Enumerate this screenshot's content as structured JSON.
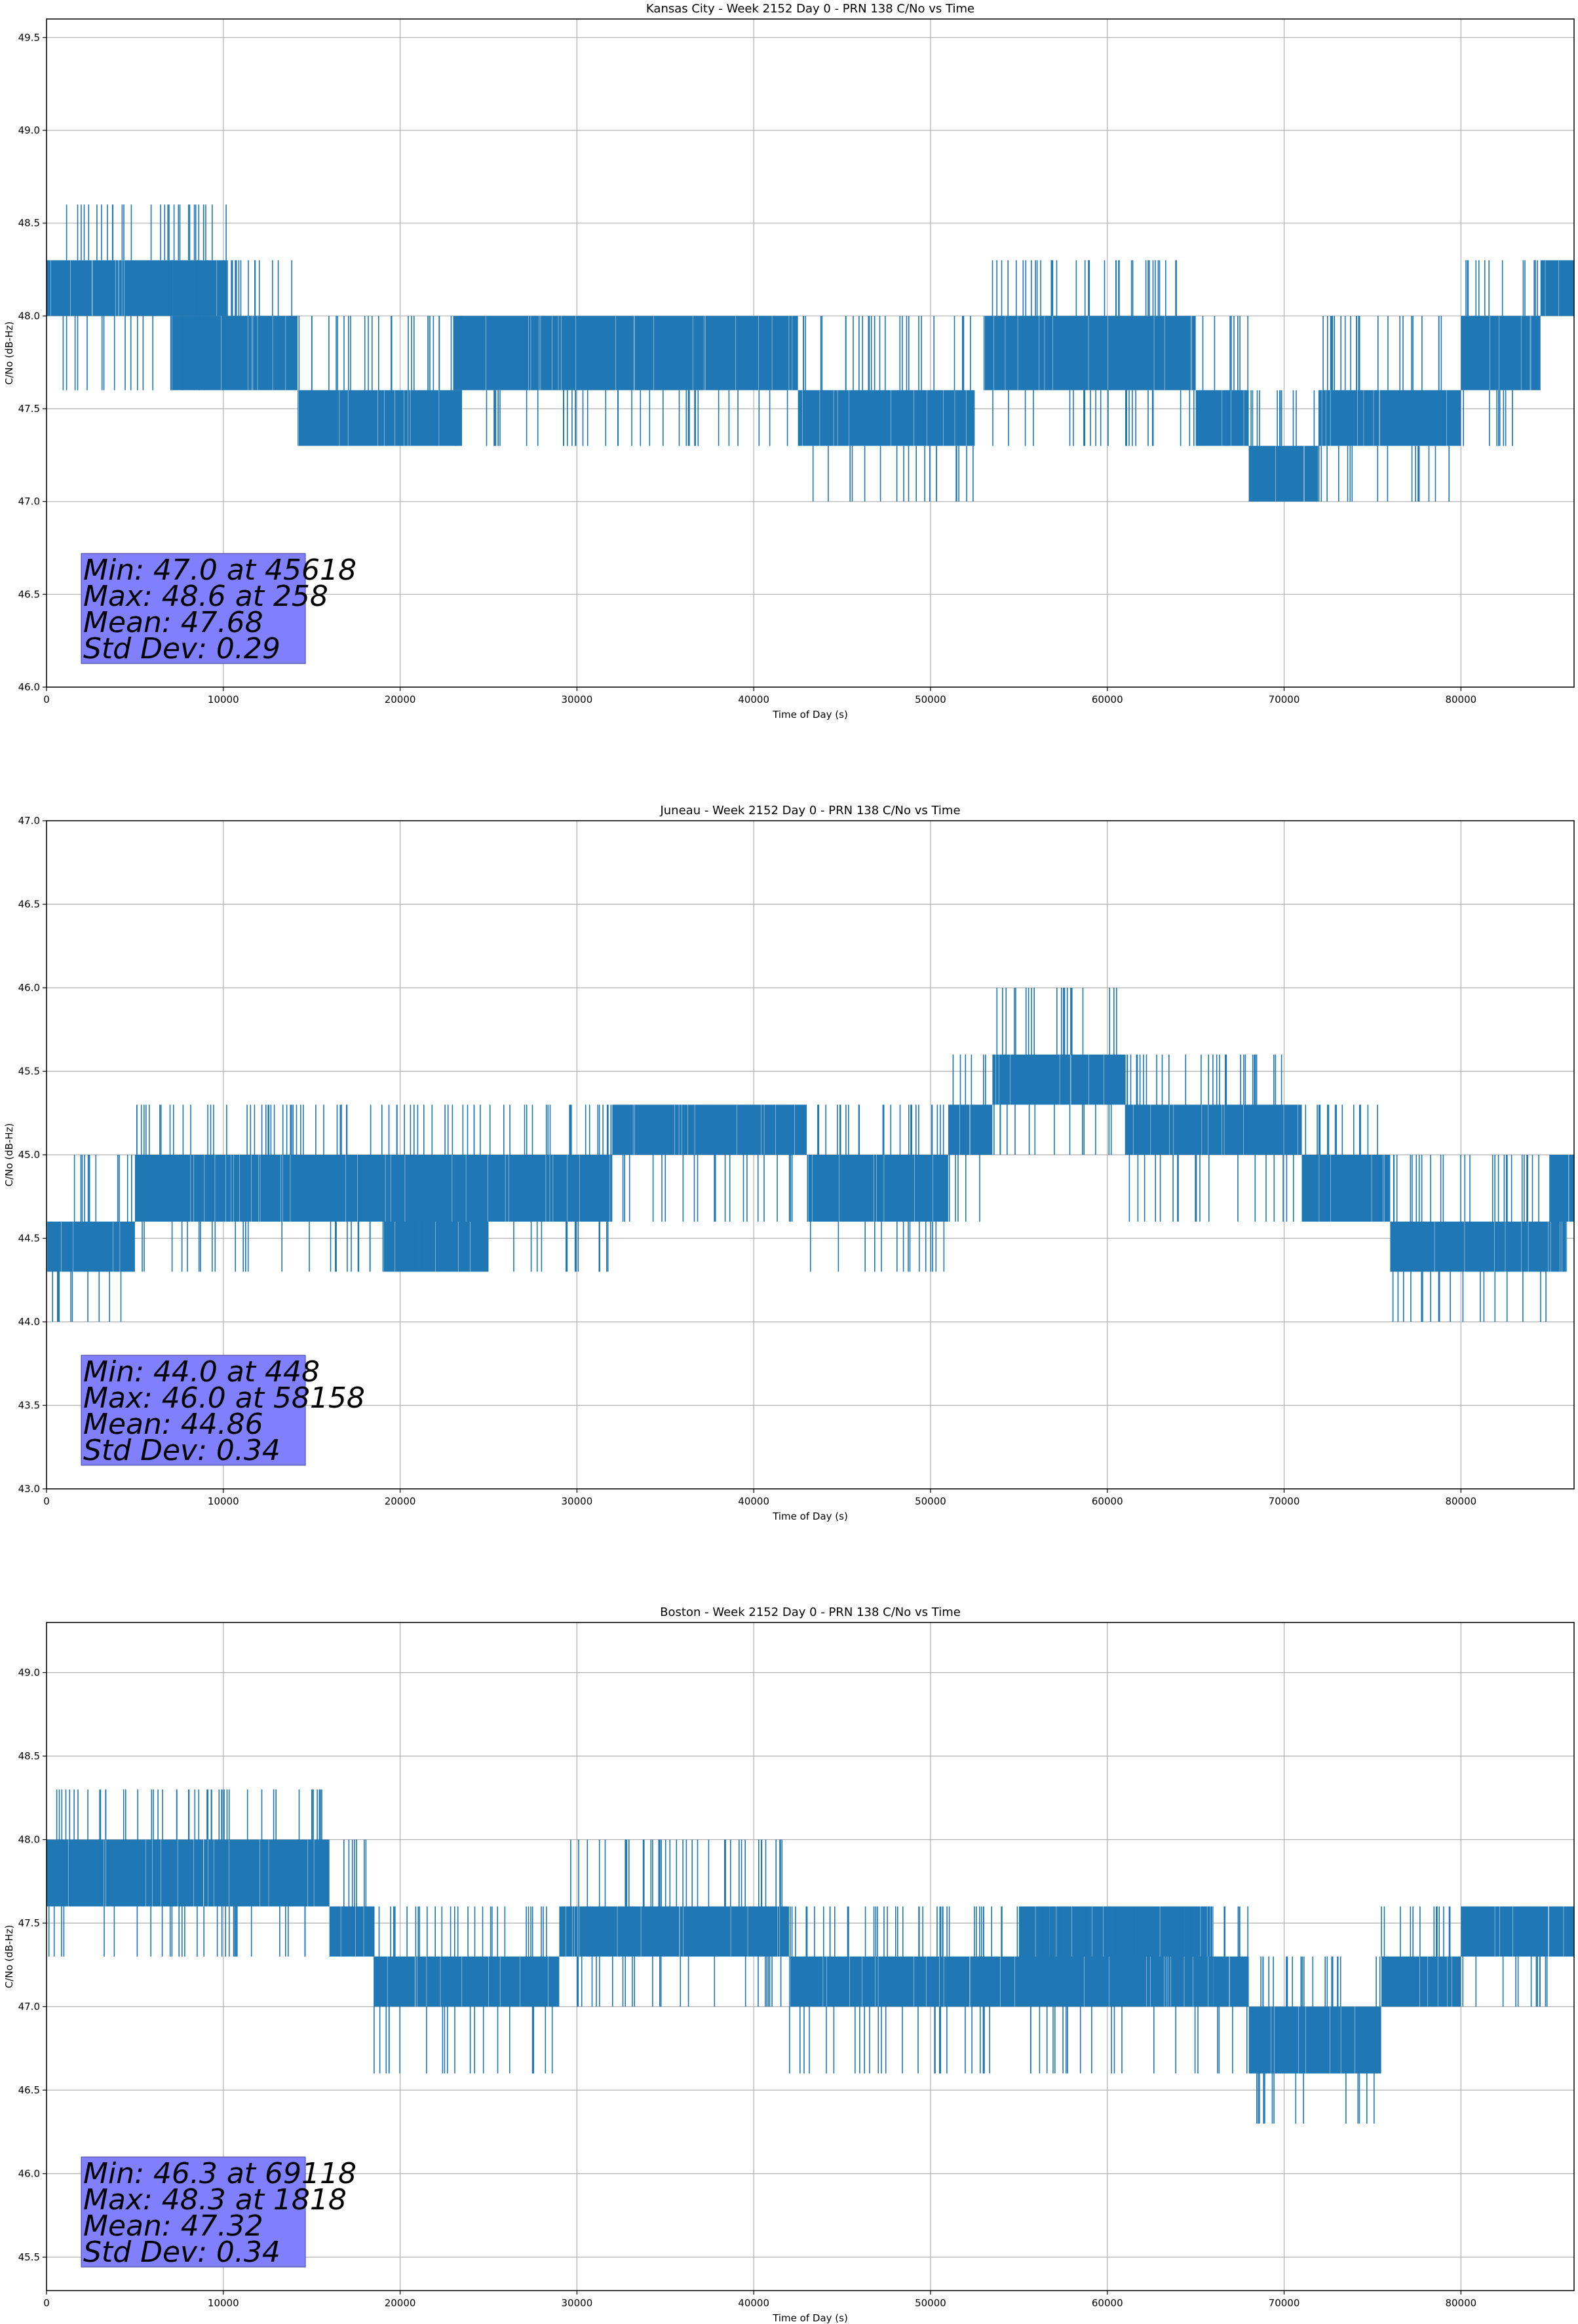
{
  "chart_data": [
    {
      "type": "line",
      "title": "Kansas City - Week 2152 Day 0 - PRN 138 C/No vs Time",
      "xlabel": "Time of Day (s)",
      "ylabel": "C/No (dB-Hz)",
      "xlim": [
        0,
        86400
      ],
      "ylim": [
        46.0,
        49.6
      ],
      "xticks": [
        0,
        10000,
        20000,
        30000,
        40000,
        50000,
        60000,
        70000,
        80000
      ],
      "yticks": [
        46.0,
        46.5,
        47.0,
        47.5,
        48.0,
        48.5,
        49.0,
        49.5
      ],
      "grid": true,
      "series_color": "#1f77b4",
      "series": [
        {
          "band_segments": [
            {
              "x": [
                0,
                10200
              ],
              "low": 48.0,
              "high": 48.3,
              "spikes_up": [
                48.6
              ],
              "spikes_down": [
                47.6
              ]
            },
            {
              "x": [
                7000,
                14200
              ],
              "low": 47.6,
              "high": 48.0,
              "spikes_up": [
                48.3
              ],
              "spikes_down": []
            },
            {
              "x": [
                14200,
                23500
              ],
              "low": 47.3,
              "high": 47.6,
              "spikes_up": [
                48.0
              ],
              "spikes_down": []
            },
            {
              "x": [
                23000,
                42500
              ],
              "low": 47.6,
              "high": 48.0,
              "spikes_up": [],
              "spikes_down": [
                47.3
              ]
            },
            {
              "x": [
                42500,
                52500
              ],
              "low": 47.3,
              "high": 47.6,
              "spikes_up": [
                48.0
              ],
              "spikes_down": [
                47.0
              ]
            },
            {
              "x": [
                53000,
                65000
              ],
              "low": 47.6,
              "high": 48.0,
              "spikes_up": [
                48.3
              ],
              "spikes_down": [
                47.3
              ]
            },
            {
              "x": [
                65000,
                68000
              ],
              "low": 47.3,
              "high": 47.6,
              "spikes_up": [
                48.0
              ],
              "spikes_down": []
            },
            {
              "x": [
                68000,
                72000
              ],
              "low": 47.0,
              "high": 47.3,
              "spikes_up": [
                47.6
              ],
              "spikes_down": []
            },
            {
              "x": [
                72000,
                80000
              ],
              "low": 47.3,
              "high": 47.6,
              "spikes_up": [
                48.0
              ],
              "spikes_down": [
                47.0
              ]
            },
            {
              "x": [
                80000,
                84500
              ],
              "low": 47.6,
              "high": 48.0,
              "spikes_up": [
                48.3
              ],
              "spikes_down": [
                47.3
              ]
            },
            {
              "x": [
                84500,
                86400
              ],
              "low": 48.0,
              "high": 48.3,
              "spikes_up": [],
              "spikes_down": []
            }
          ]
        }
      ],
      "stats": [
        "Min: 47.0 at 45618",
        "Max: 48.6 at 258",
        "Mean: 47.68",
        "Std Dev: 0.29"
      ],
      "stats_box_color": "#8080ff"
    },
    {
      "type": "line",
      "title": "Juneau - Week 2152 Day 0 - PRN 138 C/No vs Time",
      "xlabel": "Time of Day (s)",
      "ylabel": "C/No (dB-Hz)",
      "xlim": [
        0,
        86400
      ],
      "ylim": [
        43.0,
        47.0
      ],
      "xticks": [
        0,
        10000,
        20000,
        30000,
        40000,
        50000,
        60000,
        70000,
        80000
      ],
      "yticks": [
        43.0,
        43.5,
        44.0,
        44.5,
        45.0,
        45.5,
        46.0,
        46.5,
        47.0
      ],
      "grid": true,
      "series_color": "#1f77b4",
      "series": [
        {
          "band_segments": [
            {
              "x": [
                0,
                5000
              ],
              "low": 44.3,
              "high": 44.6,
              "spikes_up": [
                45.0
              ],
              "spikes_down": [
                44.0
              ]
            },
            {
              "x": [
                5000,
                25000
              ],
              "low": 44.6,
              "high": 45.0,
              "spikes_up": [
                45.3
              ],
              "spikes_down": [
                44.3
              ]
            },
            {
              "x": [
                19000,
                25000
              ],
              "low": 44.3,
              "high": 44.6,
              "spikes_up": [],
              "spikes_down": []
            },
            {
              "x": [
                25000,
                32000
              ],
              "low": 44.6,
              "high": 45.0,
              "spikes_up": [
                45.3
              ],
              "spikes_down": [
                44.3
              ]
            },
            {
              "x": [
                32000,
                43000
              ],
              "low": 45.0,
              "high": 45.3,
              "spikes_up": [],
              "spikes_down": [
                44.6
              ]
            },
            {
              "x": [
                43000,
                51000
              ],
              "low": 44.6,
              "high": 45.0,
              "spikes_up": [
                45.3
              ],
              "spikes_down": [
                44.3
              ]
            },
            {
              "x": [
                51000,
                53500
              ],
              "low": 45.0,
              "high": 45.3,
              "spikes_up": [
                45.6
              ],
              "spikes_down": [
                44.6
              ]
            },
            {
              "x": [
                53500,
                61000
              ],
              "low": 45.3,
              "high": 45.6,
              "spikes_up": [
                46.0
              ],
              "spikes_down": [
                45.0
              ]
            },
            {
              "x": [
                61000,
                71000
              ],
              "low": 45.0,
              "high": 45.3,
              "spikes_up": [
                45.6
              ],
              "spikes_down": [
                44.6
              ]
            },
            {
              "x": [
                71000,
                76000
              ],
              "low": 44.6,
              "high": 45.0,
              "spikes_up": [
                45.3
              ],
              "spikes_down": []
            },
            {
              "x": [
                76000,
                86000
              ],
              "low": 44.3,
              "high": 44.6,
              "spikes_up": [
                45.0
              ],
              "spikes_down": [
                44.0
              ]
            },
            {
              "x": [
                85000,
                86400
              ],
              "low": 44.6,
              "high": 45.0,
              "spikes_up": [],
              "spikes_down": []
            }
          ]
        }
      ],
      "stats": [
        "Min: 44.0 at 448",
        "Max: 46.0 at 58158",
        "Mean: 44.86",
        "Std Dev: 0.34"
      ],
      "stats_box_color": "#8080ff"
    },
    {
      "type": "line",
      "title": "Boston - Week 2152 Day 0 - PRN 138 C/No vs Time",
      "xlabel": "Time of Day (s)",
      "ylabel": "C/No (dB-Hz)",
      "xlim": [
        0,
        86400
      ],
      "ylim": [
        45.3,
        49.3
      ],
      "xticks": [
        0,
        10000,
        20000,
        30000,
        40000,
        50000,
        60000,
        70000,
        80000
      ],
      "yticks": [
        45.5,
        46.0,
        46.5,
        47.0,
        47.5,
        48.0,
        48.5,
        49.0
      ],
      "grid": true,
      "series_color": "#1f77b4",
      "series": [
        {
          "band_segments": [
            {
              "x": [
                0,
                16000
              ],
              "low": 47.6,
              "high": 48.0,
              "spikes_up": [
                48.3
              ],
              "spikes_down": [
                47.3
              ]
            },
            {
              "x": [
                16000,
                18500
              ],
              "low": 47.3,
              "high": 47.6,
              "spikes_up": [
                48.0
              ],
              "spikes_down": []
            },
            {
              "x": [
                18500,
                29000
              ],
              "low": 47.0,
              "high": 47.3,
              "spikes_up": [
                47.6
              ],
              "spikes_down": [
                46.6
              ]
            },
            {
              "x": [
                29000,
                42000
              ],
              "low": 47.3,
              "high": 47.6,
              "spikes_up": [
                48.0
              ],
              "spikes_down": [
                47.0
              ]
            },
            {
              "x": [
                42000,
                50000
              ],
              "low": 47.0,
              "high": 47.3,
              "spikes_up": [
                47.6
              ],
              "spikes_down": [
                46.6
              ]
            },
            {
              "x": [
                50000,
                66000
              ],
              "low": 47.0,
              "high": 47.3,
              "spikes_up": [
                47.6
              ],
              "spikes_down": [
                46.6
              ]
            },
            {
              "x": [
                55000,
                66000
              ],
              "low": 47.3,
              "high": 47.6,
              "spikes_up": [],
              "spikes_down": []
            },
            {
              "x": [
                66000,
                68000
              ],
              "low": 47.0,
              "high": 47.3,
              "spikes_up": [
                47.6
              ],
              "spikes_down": [
                46.6
              ]
            },
            {
              "x": [
                68000,
                75500
              ],
              "low": 46.6,
              "high": 47.0,
              "spikes_up": [
                47.3
              ],
              "spikes_down": [
                46.3
              ]
            },
            {
              "x": [
                75500,
                80000
              ],
              "low": 47.0,
              "high": 47.3,
              "spikes_up": [
                47.6
              ],
              "spikes_down": []
            },
            {
              "x": [
                80000,
                86400
              ],
              "low": 47.3,
              "high": 47.6,
              "spikes_up": [],
              "spikes_down": [
                47.0
              ]
            }
          ]
        }
      ],
      "stats": [
        "Min: 46.3 at 69118",
        "Max: 48.3 at 1818",
        "Mean: 47.32",
        "Std Dev: 0.34"
      ],
      "stats_box_color": "#8080ff"
    }
  ]
}
